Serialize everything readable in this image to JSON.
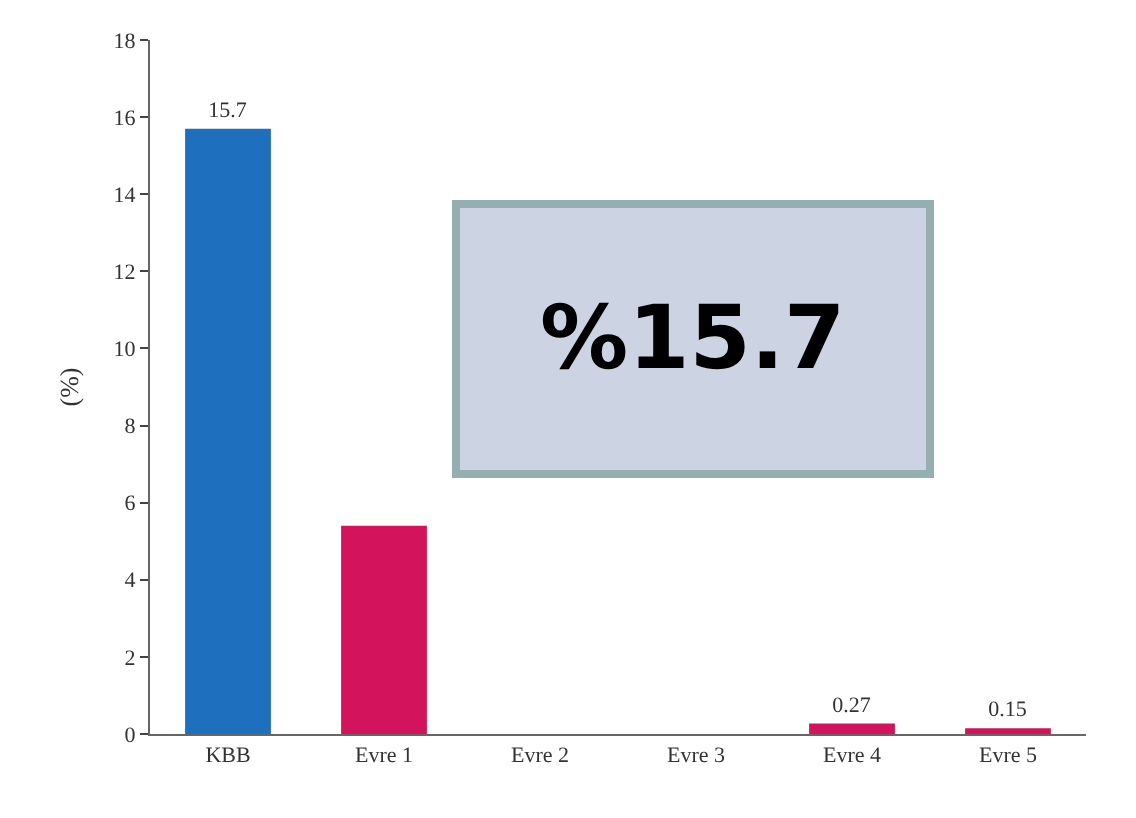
{
  "chart_data": {
    "type": "bar",
    "ylabel": "(%)",
    "categories": [
      "KBB",
      "Evre 1",
      "Evre 2",
      "Evre 3",
      "Evre 4",
      "Evre 5"
    ],
    "values": [
      15.7,
      5.4,
      null,
      null,
      0.27,
      0.15
    ],
    "colors": [
      "#1f6fbf",
      "#d3145c",
      "#d3145c",
      "#d3145c",
      "#d3145c",
      "#d3145c"
    ],
    "value_labels": [
      "15.7",
      null,
      null,
      null,
      "0.27",
      "0.15"
    ],
    "ylim": [
      0,
      18
    ],
    "yticks": [
      0,
      2,
      4,
      6,
      8,
      10,
      12,
      14,
      16,
      18
    ],
    "grid": false,
    "annotations": [
      "%15.7"
    ]
  }
}
